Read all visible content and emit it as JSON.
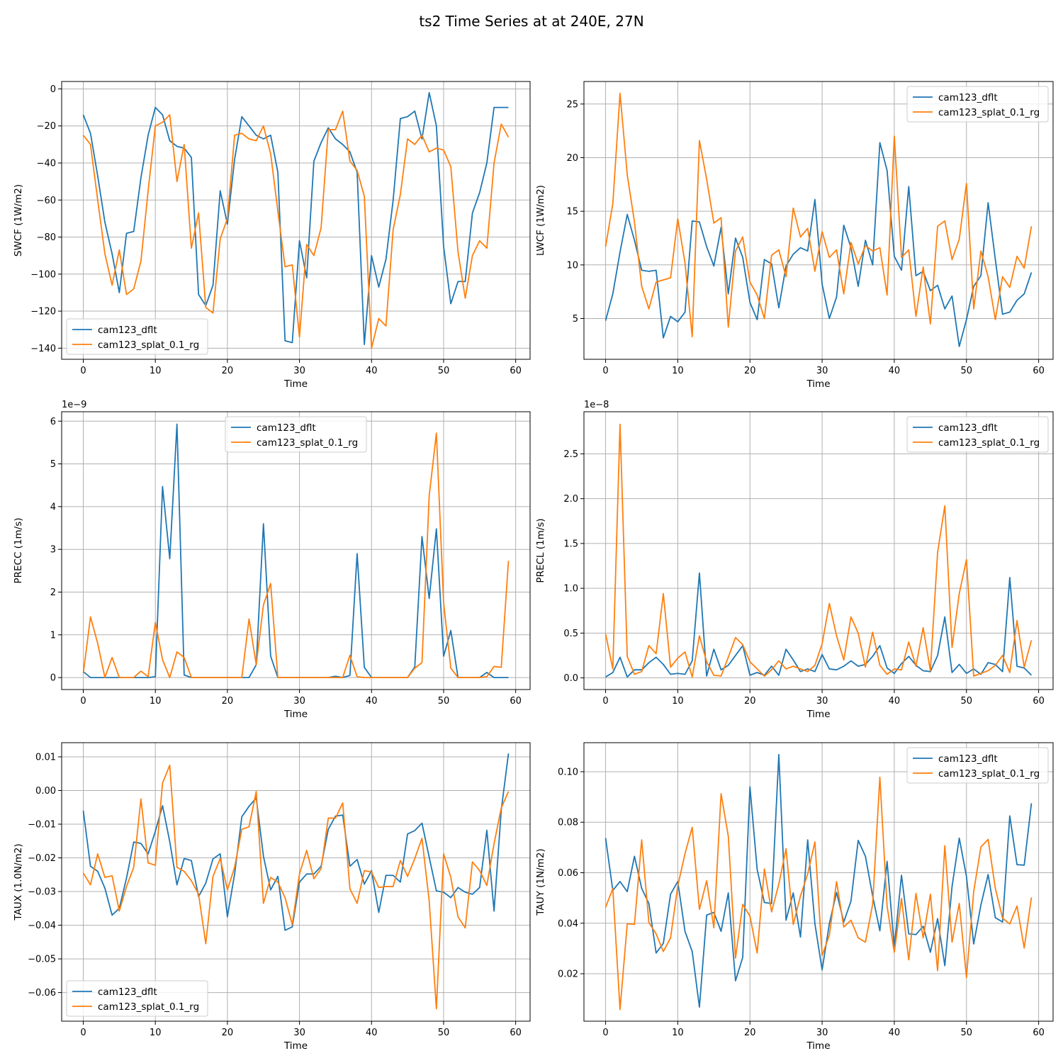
{
  "figure": {
    "title": "ts2 Time Series at at 240E, 27N"
  },
  "colors": {
    "series_0": "#1f77b4",
    "series_1": "#ff7f0e",
    "grid": "#b0b0b0",
    "axis": "#000000"
  },
  "chart_data": [
    {
      "type": "line",
      "xlabel": "Time",
      "ylabel": "SWCF (1W/m2)",
      "xlim": [
        -3,
        62
      ],
      "ylim": [
        -146,
        4
      ],
      "xticks": [
        0,
        10,
        20,
        30,
        40,
        50,
        60
      ],
      "xtick_labels": [
        "0",
        "10",
        "20",
        "30",
        "40",
        "50",
        "60"
      ],
      "yticks": [
        0,
        -20,
        -40,
        -60,
        -80,
        -100,
        -120,
        -140
      ],
      "ytick_labels": [
        "0",
        "−20",
        "−40",
        "−60",
        "−80",
        "−100",
        "−120",
        "−140"
      ],
      "offset_text": "",
      "legend_position": "lower-left",
      "grid": true,
      "series": [
        {
          "name": "cam123_dflt",
          "values": [
            -14,
            -24,
            -47,
            -72,
            -89,
            -110,
            -78,
            -77,
            -48,
            -25,
            -10,
            -14,
            -28,
            -31,
            -32,
            -37,
            -111,
            -117,
            -106,
            -55,
            -73,
            -38,
            -15,
            -20,
            -25,
            -27,
            -25,
            -45,
            -136,
            -137,
            -82,
            -102,
            -39,
            -29,
            -21,
            -27,
            -30,
            -34,
            -45,
            -138,
            -90,
            -107,
            -92,
            -60,
            -16,
            -15,
            -12,
            -27,
            -2,
            -20,
            -85,
            -116,
            -104,
            -104,
            -67,
            -56,
            -40,
            -10,
            -10,
            -10
          ]
        },
        {
          "name": "cam123_splat_0.1_rg",
          "values": [
            -25,
            -30,
            -60,
            -89,
            -106,
            -87,
            -111,
            -108,
            -93,
            -55,
            -20,
            -18,
            -14,
            -50,
            -30,
            -86,
            -67,
            -118,
            -121,
            -81,
            -70,
            -25,
            -24,
            -27,
            -28,
            -20,
            -35,
            -66,
            -96,
            -95,
            -134,
            -84,
            -90,
            -75,
            -22,
            -22,
            -12,
            -39,
            -44,
            -58,
            -140,
            -124,
            -128,
            -76,
            -57,
            -27,
            -30,
            -25,
            -34,
            -32,
            -33,
            -42,
            -88,
            -113,
            -90,
            -82,
            -86,
            -40,
            -19,
            -26
          ]
        }
      ]
    },
    {
      "type": "line",
      "xlabel": "Time",
      "ylabel": "LWCF (1W/m2)",
      "xlim": [
        -3,
        62
      ],
      "ylim": [
        1.2,
        27.1
      ],
      "xticks": [
        0,
        10,
        20,
        30,
        40,
        50,
        60
      ],
      "xtick_labels": [
        "0",
        "10",
        "20",
        "30",
        "40",
        "50",
        "60"
      ],
      "yticks": [
        5,
        10,
        15,
        20,
        25
      ],
      "ytick_labels": [
        "5",
        "10",
        "15",
        "20",
        "25"
      ],
      "offset_text": "",
      "legend_position": "upper-right",
      "grid": true,
      "series": [
        {
          "name": "cam123_dflt",
          "values": [
            4.8,
            7.3,
            11.2,
            14.7,
            12.3,
            9.5,
            9.4,
            9.5,
            3.2,
            5.2,
            4.7,
            5.6,
            14.1,
            14,
            11.7,
            9.9,
            13.5,
            7.3,
            12.5,
            10.7,
            6.5,
            4.9,
            10.5,
            10.1,
            6.0,
            9.9,
            11.0,
            11.6,
            11.3,
            16.1,
            8.2,
            5.0,
            7.0,
            13.7,
            11.6,
            8.0,
            12.3,
            10.0,
            21.4,
            18.8,
            10.8,
            9.5,
            17.3,
            9.0,
            9.4,
            7.6,
            8.1,
            5.9,
            7.1,
            2.4,
            4.9,
            8.0,
            9.0,
            15.8,
            10.5,
            5.4,
            5.6,
            6.7,
            7.3,
            9.3
          ]
        },
        {
          "name": "cam123_splat_0.1_rg",
          "values": [
            11.7,
            15.7,
            26.0,
            18.4,
            14.0,
            8.0,
            5.9,
            8.4,
            8.6,
            8.8,
            14.3,
            10.2,
            3.3,
            21.6,
            18.0,
            13.9,
            14.4,
            4.2,
            11.3,
            12.6,
            8.4,
            7.2,
            5.0,
            10.9,
            11.4,
            8.9,
            15.3,
            12.6,
            13.4,
            9.4,
            13.1,
            10.7,
            11.4,
            7.3,
            12.1,
            10.1,
            11.8,
            11.3,
            11.6,
            7.2,
            22.0,
            10.7,
            11.4,
            5.2,
            9.8,
            4.5,
            13.6,
            14.1,
            10.5,
            12.4,
            17.6,
            5.9,
            11.3,
            8.9,
            4.9,
            8.9,
            7.9,
            10.8,
            9.7,
            13.6
          ]
        }
      ]
    },
    {
      "type": "line",
      "xlabel": "Time",
      "ylabel": "PRECC (1m/s)",
      "xlim": [
        -3,
        62
      ],
      "ylim": [
        -0.28,
        6.22
      ],
      "xticks": [
        0,
        10,
        20,
        30,
        40,
        50,
        60
      ],
      "xtick_labels": [
        "0",
        "10",
        "20",
        "30",
        "40",
        "50",
        "60"
      ],
      "yticks": [
        0,
        1,
        2,
        3,
        4,
        5,
        6
      ],
      "ytick_labels": [
        "0",
        "1",
        "2",
        "3",
        "4",
        "5",
        "6"
      ],
      "offset_text": "1e−9",
      "legend_position": "upper-center",
      "grid": true,
      "series": [
        {
          "name": "cam123_dflt",
          "values": [
            0.14,
            0,
            0,
            0,
            0,
            0,
            0,
            0,
            0,
            0,
            0.02,
            4.47,
            2.78,
            5.93,
            0.06,
            0,
            0,
            0,
            0,
            0,
            0,
            0,
            0,
            0,
            0.3,
            3.6,
            0.5,
            0,
            0,
            0,
            0,
            0,
            0,
            0,
            0,
            0.03,
            0,
            0.05,
            2.9,
            0.24,
            0,
            0,
            0,
            0,
            0,
            0,
            0.25,
            3.3,
            1.85,
            3.48,
            0.5,
            1.1,
            0,
            0,
            0,
            0,
            0.12,
            0,
            0,
            0
          ]
        },
        {
          "name": "cam123_splat_0.1_rg",
          "values": [
            0.1,
            1.42,
            0.8,
            0,
            0.47,
            0,
            0,
            0,
            0.15,
            0.02,
            1.29,
            0.42,
            0,
            0.6,
            0.47,
            0,
            0,
            0,
            0,
            0,
            0,
            0,
            0,
            1.37,
            0.3,
            1.7,
            2.2,
            0,
            0,
            0,
            0,
            0,
            0,
            0,
            0,
            0,
            0,
            0.52,
            0.02,
            0,
            0,
            0,
            0,
            0,
            0,
            0,
            0.22,
            0.35,
            4.25,
            5.72,
            1.75,
            0.22,
            0,
            0,
            0,
            0,
            0.02,
            0.26,
            0.24,
            2.73
          ]
        }
      ]
    },
    {
      "type": "line",
      "xlabel": "Time",
      "ylabel": "PRECL (1m/s)",
      "xlim": [
        -3,
        62
      ],
      "ylim": [
        -0.13,
        2.97
      ],
      "xticks": [
        0,
        10,
        20,
        30,
        40,
        50,
        60
      ],
      "xtick_labels": [
        "0",
        "10",
        "20",
        "30",
        "40",
        "50",
        "60"
      ],
      "yticks": [
        0,
        0.5,
        1,
        1.5,
        2,
        2.5
      ],
      "ytick_labels": [
        "0.0",
        "0.5",
        "1.0",
        "1.5",
        "2.0",
        "2.5"
      ],
      "offset_text": "1e−8",
      "legend_position": "upper-right",
      "grid": true,
      "series": [
        {
          "name": "cam123_dflt",
          "values": [
            0.01,
            0.06,
            0.23,
            0.01,
            0.09,
            0.09,
            0.17,
            0.23,
            0.15,
            0.04,
            0.05,
            0.04,
            0.19,
            1.17,
            0.02,
            0.32,
            0.09,
            0.14,
            0.25,
            0.36,
            0.03,
            0.06,
            0.03,
            0.13,
            0.03,
            0.32,
            0.2,
            0.07,
            0.1,
            0.07,
            0.26,
            0.1,
            0.09,
            0.13,
            0.19,
            0.13,
            0.15,
            0.24,
            0.36,
            0.11,
            0.05,
            0.16,
            0.24,
            0.14,
            0.08,
            0.07,
            0.25,
            0.68,
            0.06,
            0.15,
            0.05,
            0.1,
            0.04,
            0.17,
            0.15,
            0.07,
            1.12,
            0.13,
            0.11,
            0.03
          ]
        },
        {
          "name": "cam123_splat_0.1_rg",
          "values": [
            0.49,
            0.1,
            2.83,
            0.24,
            0.04,
            0.07,
            0.36,
            0.27,
            0.94,
            0.12,
            0.22,
            0.29,
            0.01,
            0.47,
            0.18,
            0.03,
            0.02,
            0.23,
            0.45,
            0.37,
            0.18,
            0.1,
            0.02,
            0.09,
            0.19,
            0.1,
            0.13,
            0.1,
            0.07,
            0.14,
            0.38,
            0.83,
            0.47,
            0.2,
            0.68,
            0.5,
            0.12,
            0.51,
            0.14,
            0.04,
            0.1,
            0.09,
            0.4,
            0.13,
            0.56,
            0.08,
            1.4,
            1.92,
            0.34,
            0.94,
            1.32,
            0.02,
            0.05,
            0.08,
            0.14,
            0.25,
            0.06,
            0.64,
            0.12,
            0.42
          ]
        }
      ]
    },
    {
      "type": "line",
      "xlabel": "Time",
      "ylabel": "TAUX (1.0N/m2)",
      "xlim": [
        -3,
        62
      ],
      "ylim": [
        -0.0685,
        0.0142
      ],
      "xticks": [
        0,
        10,
        20,
        30,
        40,
        50,
        60
      ],
      "xtick_labels": [
        "0",
        "10",
        "20",
        "30",
        "40",
        "50",
        "60"
      ],
      "yticks": [
        0.01,
        0,
        -0.01,
        -0.02,
        -0.03,
        -0.04,
        -0.05,
        -0.06
      ],
      "ytick_labels": [
        "0.01",
        "0.00",
        "−0.01",
        "−0.02",
        "−0.03",
        "−0.04",
        "−0.05",
        "−0.06"
      ],
      "offset_text": "",
      "legend_position": "lower-left",
      "grid": true,
      "series": [
        {
          "name": "cam123_dflt",
          "values": [
            -0.006,
            -0.0225,
            -0.024,
            -0.029,
            -0.037,
            -0.035,
            -0.026,
            -0.0153,
            -0.0157,
            -0.0188,
            -0.0121,
            -0.0045,
            -0.0152,
            -0.028,
            -0.0202,
            -0.0208,
            -0.0315,
            -0.0275,
            -0.0203,
            -0.0188,
            -0.0375,
            -0.0248,
            -0.0078,
            -0.0047,
            -0.0022,
            -0.0195,
            -0.0295,
            -0.0255,
            -0.0415,
            -0.0405,
            -0.0272,
            -0.0248,
            -0.0248,
            -0.0225,
            -0.0115,
            -0.0076,
            -0.0073,
            -0.0225,
            -0.0205,
            -0.0278,
            -0.0238,
            -0.0362,
            -0.0252,
            -0.0252,
            -0.0272,
            -0.0129,
            -0.0119,
            -0.0097,
            -0.0198,
            -0.0298,
            -0.0302,
            -0.0318,
            -0.0288,
            -0.0302,
            -0.0308,
            -0.0288,
            -0.0118,
            -0.0358,
            -0.0058,
            0.011
          ]
        },
        {
          "name": "cam123_splat_0.1_rg",
          "values": [
            -0.0245,
            -0.028,
            -0.0188,
            -0.0258,
            -0.0253,
            -0.0358,
            -0.0285,
            -0.0228,
            -0.0025,
            -0.0215,
            -0.0222,
            0.0022,
            0.0075,
            -0.0228,
            -0.024,
            -0.0268,
            -0.0308,
            -0.0455,
            -0.0255,
            -0.0202,
            -0.0295,
            -0.0228,
            -0.0115,
            -0.0108,
            -0.0003,
            -0.0335,
            -0.0258,
            -0.0272,
            -0.0318,
            -0.0398,
            -0.0248,
            -0.0178,
            -0.0262,
            -0.0232,
            -0.0082,
            -0.0082,
            -0.0037,
            -0.0292,
            -0.0335,
            -0.0238,
            -0.0242,
            -0.0288,
            -0.0285,
            -0.0285,
            -0.0208,
            -0.0255,
            -0.0202,
            -0.0142,
            -0.0328,
            -0.0648,
            -0.0188,
            -0.0258,
            -0.0375,
            -0.0408,
            -0.0212,
            -0.0238,
            -0.0282,
            -0.0158,
            -0.0052,
            -0.0003
          ]
        }
      ]
    },
    {
      "type": "line",
      "xlabel": "Time",
      "ylabel": "TAUY (1N/m2)",
      "xlim": [
        -3,
        62
      ],
      "ylim": [
        0.0012,
        0.1115
      ],
      "xticks": [
        0,
        10,
        20,
        30,
        40,
        50,
        60
      ],
      "xtick_labels": [
        "0",
        "10",
        "20",
        "30",
        "40",
        "50",
        "60"
      ],
      "yticks": [
        0.02,
        0.04,
        0.06,
        0.08,
        0.1
      ],
      "ytick_labels": [
        "0.02",
        "0.04",
        "0.06",
        "0.08",
        "0.10"
      ],
      "offset_text": "",
      "legend_position": "upper-right",
      "grid": true,
      "series": [
        {
          "name": "cam123_dflt",
          "values": [
            0.0737,
            0.053,
            0.0565,
            0.0525,
            0.0665,
            0.0538,
            0.0478,
            0.0282,
            0.032,
            0.0515,
            0.0565,
            0.0368,
            0.0288,
            0.0068,
            0.0432,
            0.0443,
            0.0368,
            0.052,
            0.0172,
            0.0265,
            0.094,
            0.0613,
            0.0482,
            0.0478,
            0.1068,
            0.0412,
            0.052,
            0.0345,
            0.073,
            0.0398,
            0.0215,
            0.0398,
            0.0522,
            0.0405,
            0.0488,
            0.0728,
            0.0665,
            0.0508,
            0.037,
            0.0645,
            0.0305,
            0.059,
            0.0358,
            0.0355,
            0.0388,
            0.0285,
            0.0418,
            0.0232,
            0.0545,
            0.0737,
            0.0585,
            0.0318,
            0.0472,
            0.0593,
            0.0422,
            0.0405,
            0.0825,
            0.0632,
            0.063,
            0.0875
          ]
        },
        {
          "name": "cam123_splat_0.1_rg",
          "values": [
            0.0463,
            0.0537,
            0.0058,
            0.0398,
            0.0395,
            0.073,
            0.0402,
            0.0358,
            0.0288,
            0.0342,
            0.0548,
            0.0675,
            0.078,
            0.0455,
            0.0568,
            0.0382,
            0.0913,
            0.0745,
            0.0262,
            0.0475,
            0.0428,
            0.0282,
            0.0615,
            0.0445,
            0.0555,
            0.0695,
            0.0395,
            0.0508,
            0.0595,
            0.0722,
            0.0272,
            0.0352,
            0.0565,
            0.0385,
            0.0412,
            0.0342,
            0.0325,
            0.0475,
            0.0978,
            0.0468,
            0.0285,
            0.0498,
            0.0255,
            0.0518,
            0.0342,
            0.0515,
            0.0212,
            0.0707,
            0.0325,
            0.0478,
            0.0185,
            0.0525,
            0.0702,
            0.0732,
            0.0538,
            0.042,
            0.0397,
            0.0468,
            0.0302,
            0.0502
          ]
        }
      ]
    }
  ]
}
